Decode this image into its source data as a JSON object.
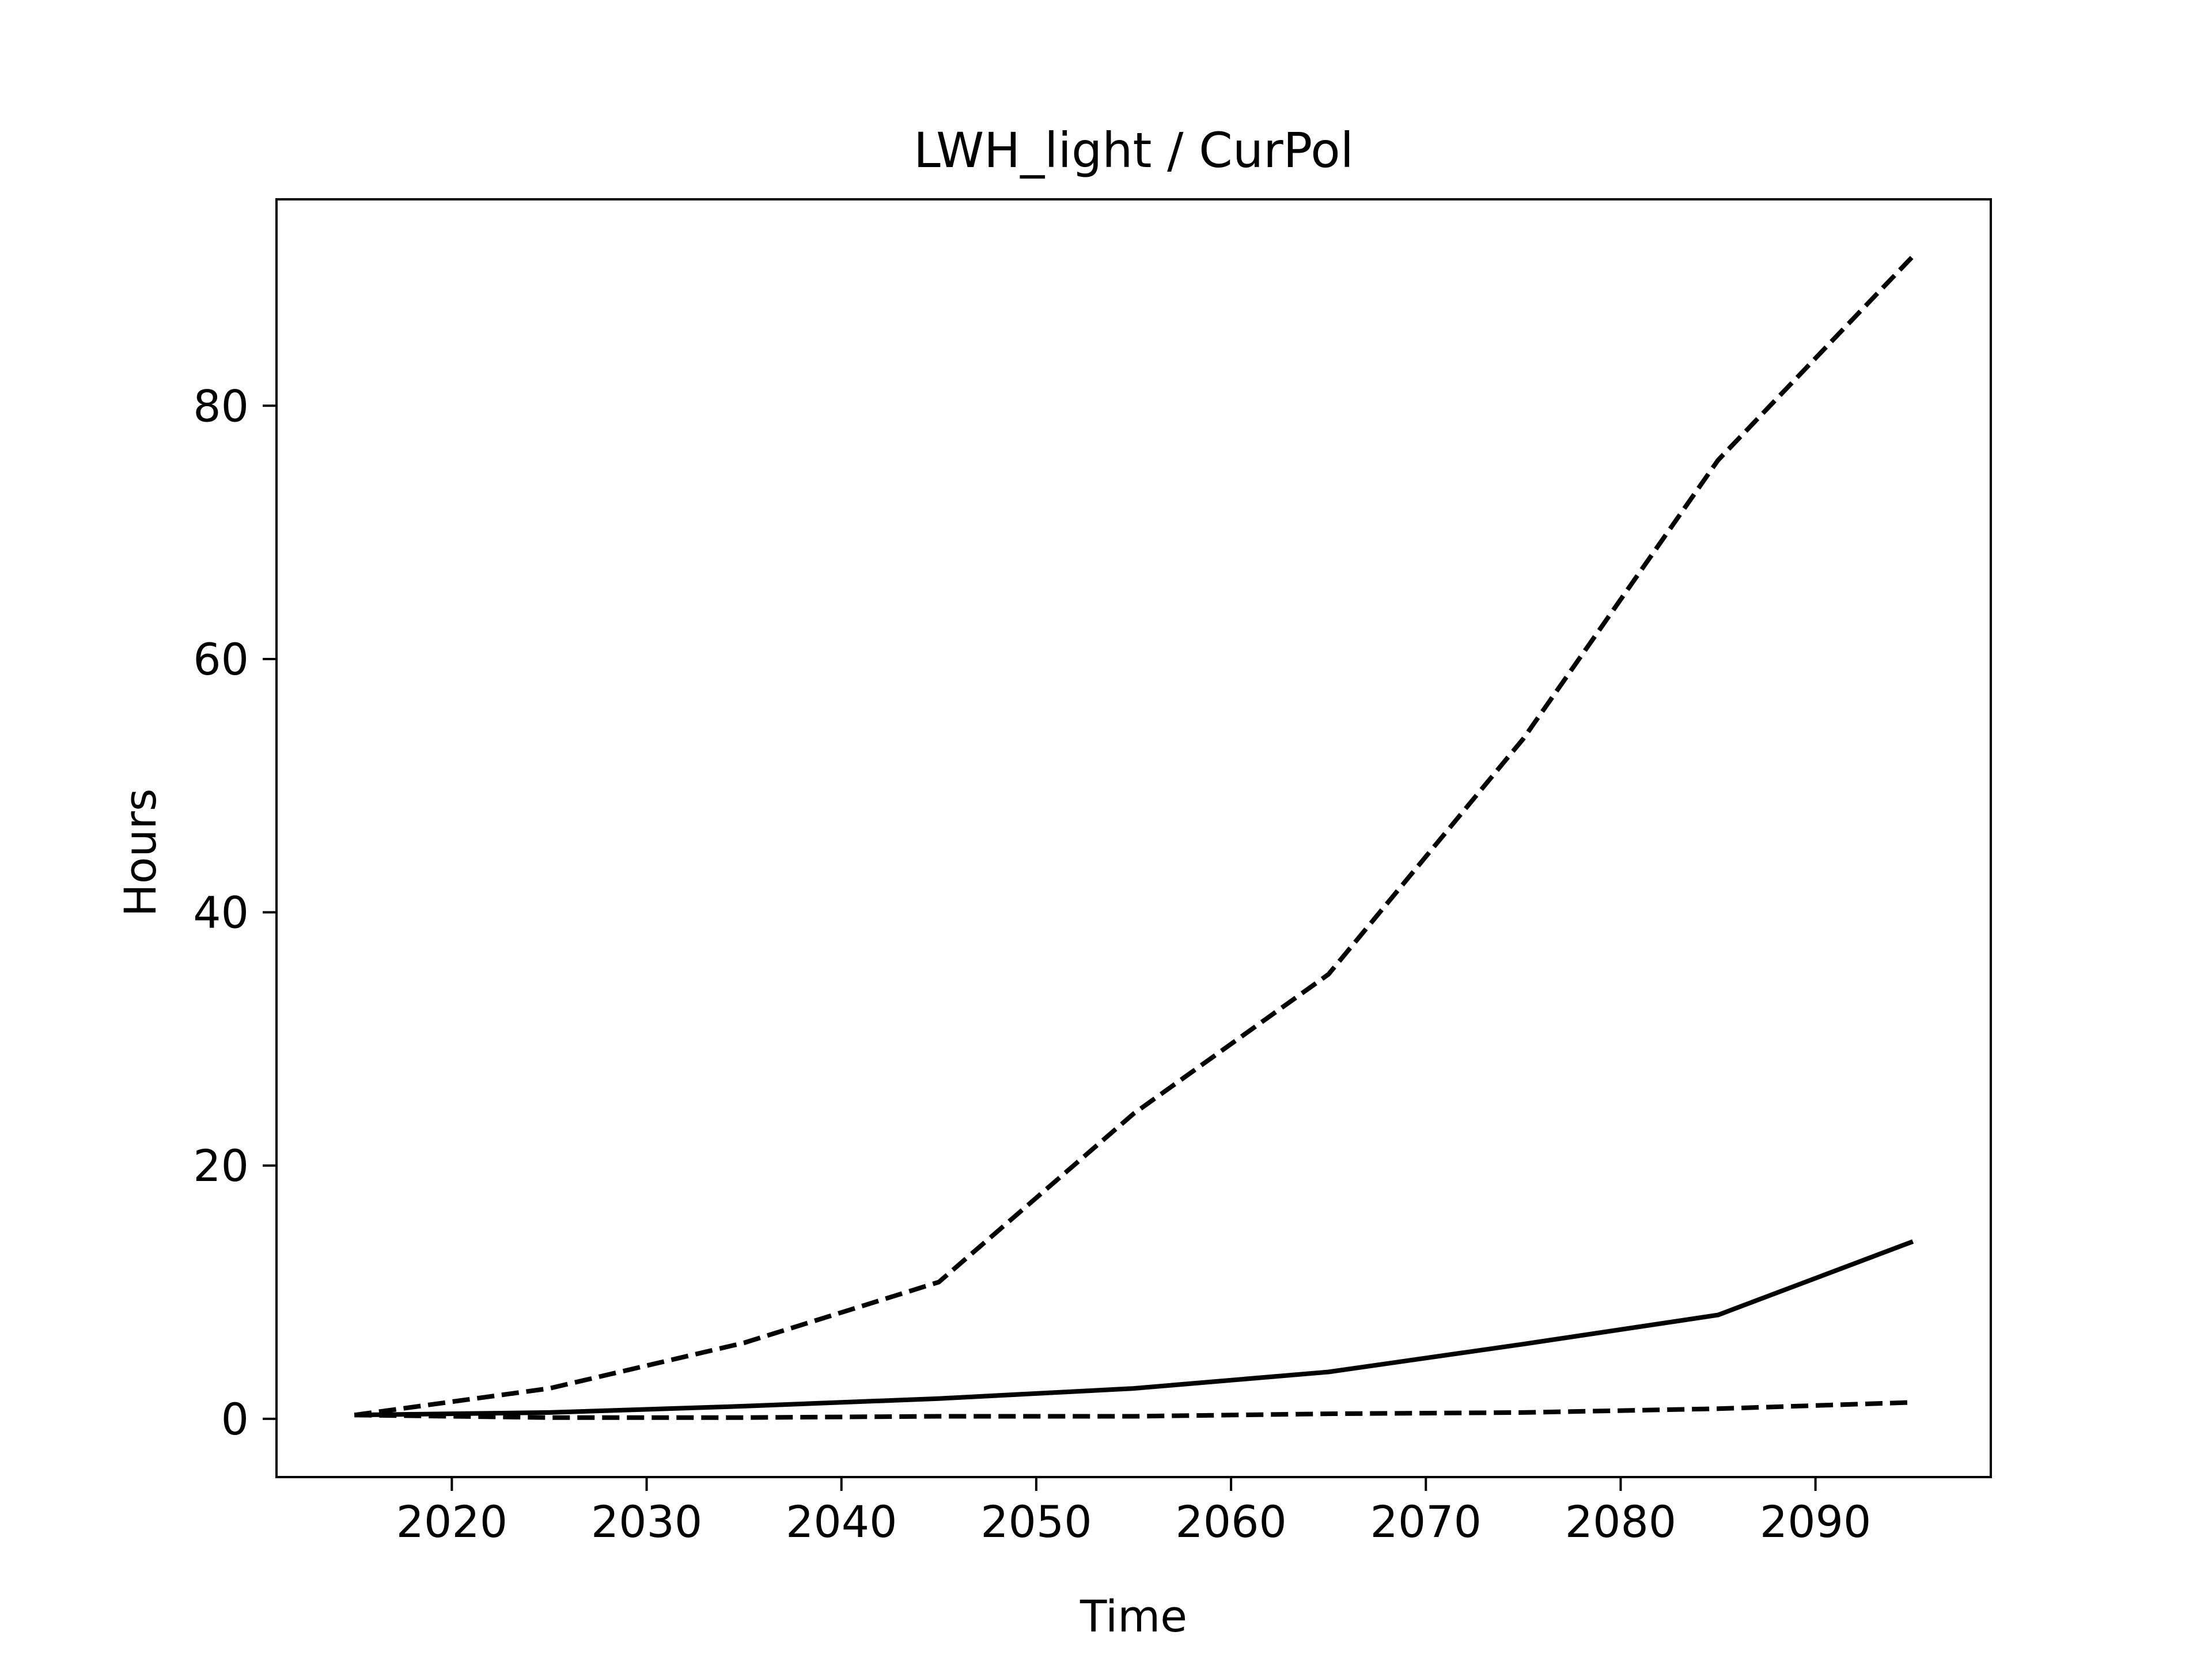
{
  "chart_data": {
    "type": "line",
    "title": "LWH_light / CurPol",
    "xlabel": "Time",
    "ylabel": "Hours",
    "xlim": [
      2011,
      2099
    ],
    "ylim": [
      -4.6,
      96.3
    ],
    "x_ticks": [
      2020,
      2030,
      2040,
      2050,
      2060,
      2070,
      2080,
      2090
    ],
    "y_ticks": [
      0,
      20,
      40,
      60,
      80
    ],
    "grid": false,
    "legend": null,
    "x": [
      2015,
      2025,
      2035,
      2045,
      2055,
      2065,
      2075,
      2085,
      2095
    ],
    "series": [
      {
        "style": "dashed",
        "color": "#000000",
        "values": [
          0.3,
          2.4,
          6.0,
          10.8,
          24.1,
          35.1,
          53.7,
          75.7,
          91.8
        ]
      },
      {
        "style": "solid",
        "color": "#000000",
        "values": [
          0.3,
          0.5,
          1.0,
          1.6,
          2.4,
          3.7,
          5.9,
          8.2,
          14.0
        ]
      },
      {
        "style": "dashed",
        "color": "#000000",
        "values": [
          0.3,
          0.1,
          0.1,
          0.2,
          0.2,
          0.4,
          0.5,
          0.8,
          1.3
        ]
      }
    ]
  }
}
